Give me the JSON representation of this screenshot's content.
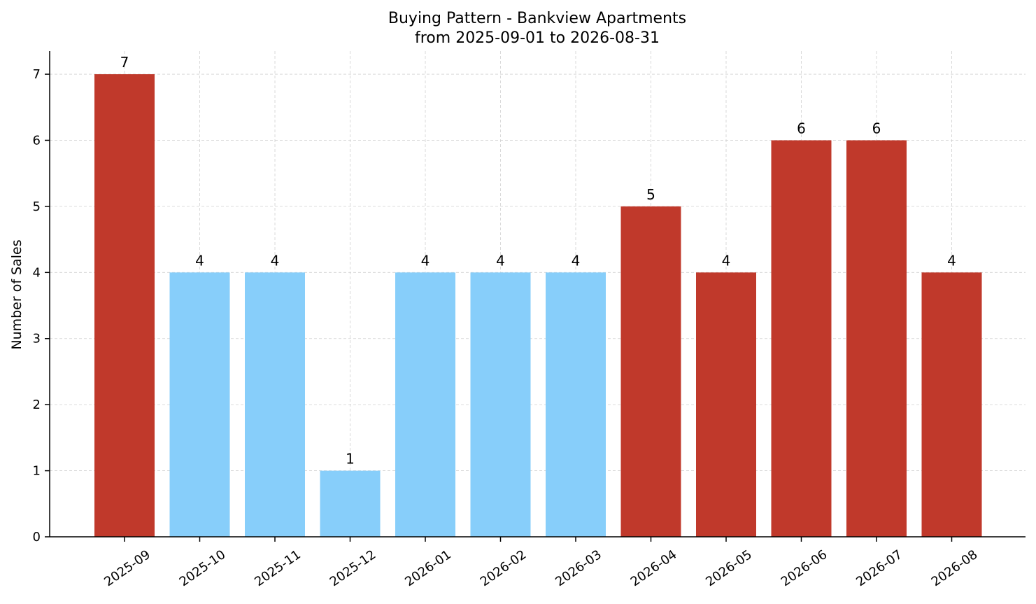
{
  "chart_data": {
    "type": "bar",
    "title": "Buying Pattern - Bankview Apartments",
    "subtitle": "from 2025-09-01 to 2026-08-31",
    "xlabel": "",
    "ylabel": "Number of Sales",
    "categories": [
      "2025-09",
      "2025-10",
      "2025-11",
      "2025-12",
      "2026-01",
      "2026-02",
      "2026-03",
      "2026-04",
      "2026-05",
      "2026-06",
      "2026-07",
      "2026-08"
    ],
    "values": [
      7,
      4,
      4,
      1,
      4,
      4,
      4,
      5,
      4,
      6,
      6,
      4
    ],
    "bar_colors": [
      "#c0392b",
      "#87cefa",
      "#87cefa",
      "#87cefa",
      "#87cefa",
      "#87cefa",
      "#87cefa",
      "#c0392b",
      "#c0392b",
      "#c0392b",
      "#c0392b",
      "#c0392b"
    ],
    "yticks": [
      0,
      1,
      2,
      3,
      4,
      5,
      6,
      7
    ],
    "ylim": [
      0,
      7.35
    ],
    "grid": true,
    "data_labels": true
  }
}
